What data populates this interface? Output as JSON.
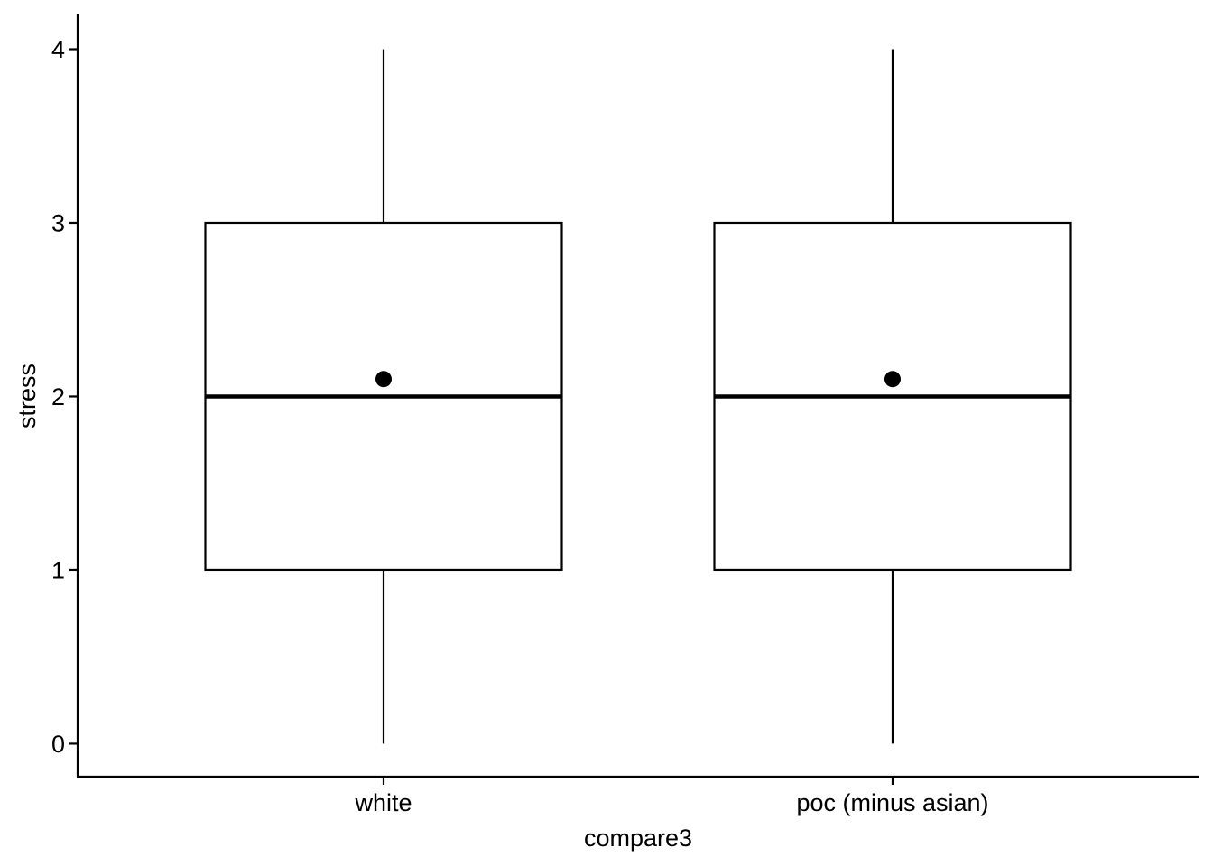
{
  "chart_data": {
    "type": "box",
    "xlabel": "compare3",
    "ylabel": "stress",
    "ylim": [
      -0.19,
      4.2
    ],
    "y_ticks": [
      0,
      1,
      2,
      3,
      4
    ],
    "grid": false,
    "colors": {
      "box_fill": "#ffffff",
      "stroke": "#000000"
    },
    "categories": [
      "white",
      "poc (minus asian)"
    ],
    "boxes": [
      {
        "category": "white",
        "min": 0,
        "q1": 1,
        "median": 2,
        "q3": 3,
        "max": 4,
        "mean": 2.1
      },
      {
        "category": "poc (minus asian)",
        "min": 0,
        "q1": 1,
        "median": 2,
        "q3": 3,
        "max": 4,
        "mean": 2.1
      }
    ]
  }
}
